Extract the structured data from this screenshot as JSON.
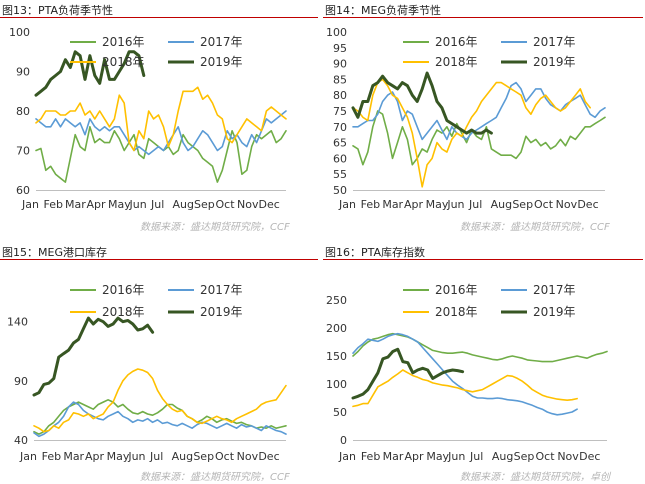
{
  "panels": [
    {
      "title": "图13：PTA负荷季节性",
      "source": "数据来源：盛达期货研究院，CCF"
    },
    {
      "title": "图14：MEG负荷季节性",
      "source": "数据来源：盛达期货研究院，CCF"
    },
    {
      "title": "图15：MEG港口库存",
      "source": "数据来源：盛达期货研究院，CCF"
    },
    {
      "title": "图16：PTA库存指数",
      "source": "数据来源：盛达期货研究院，卓创"
    }
  ],
  "colors": {
    "2016年": "#70ad47",
    "2017年": "#5b9bd5",
    "2018年": "#ffc000",
    "2019年": "#375623"
  },
  "chart_data": [
    {
      "type": "line",
      "ylim": [
        60,
        100
      ],
      "yticks": [
        60,
        70,
        80,
        90,
        100
      ],
      "xticks": [
        "Jan",
        "Feb",
        "Mar",
        "Apr",
        "May",
        "Jun",
        "Jul",
        "Aug",
        "Sep",
        "Oct",
        "Nov",
        "Dec"
      ],
      "legend": "top",
      "n_points": 52,
      "series": [
        {
          "name": "2016年",
          "values": [
            70,
            70.5,
            65,
            66,
            64,
            63,
            62,
            68,
            74,
            71,
            70,
            76,
            72,
            73,
            72,
            72,
            75,
            73,
            70,
            72,
            74,
            69,
            68,
            73,
            72,
            71,
            70,
            71,
            69,
            70,
            74,
            72,
            71,
            70,
            68,
            67,
            66,
            62,
            65,
            70,
            75,
            72,
            64,
            65,
            71,
            74,
            73,
            74,
            75,
            72,
            73,
            75
          ]
        },
        {
          "name": "2017年",
          "values": [
            78,
            77,
            76,
            76,
            78,
            76,
            78,
            77,
            76,
            77,
            74,
            78,
            76,
            75,
            76,
            75,
            76,
            76,
            74,
            72,
            70,
            71,
            70,
            69,
            70,
            71,
            70,
            72,
            74,
            76,
            72,
            70,
            71,
            73,
            75,
            74,
            72,
            70,
            71,
            75,
            73,
            74,
            72,
            71,
            74,
            72,
            75,
            78,
            77,
            78,
            79,
            80
          ]
        },
        {
          "name": "2018年",
          "values": [
            77,
            78,
            80,
            80,
            80,
            79,
            79,
            80,
            80,
            82,
            79,
            80,
            78,
            80,
            78,
            76,
            78,
            84,
            82,
            72,
            70,
            75,
            73,
            80,
            78,
            79,
            76,
            71,
            74,
            80,
            85,
            85,
            85,
            86,
            83,
            84,
            82,
            79,
            78,
            73,
            72,
            74,
            76,
            78,
            77,
            76,
            75,
            80,
            81,
            80,
            79,
            78
          ]
        },
        {
          "name": "2019年",
          "values": [
            84,
            85,
            86,
            88,
            89,
            90,
            93,
            91,
            95,
            94,
            88,
            94,
            89,
            87,
            93,
            88,
            88,
            90,
            92,
            95,
            95,
            94,
            89
          ]
        }
      ]
    },
    {
      "type": "line",
      "ylim": [
        50,
        100
      ],
      "yticks": [
        50,
        55,
        60,
        65,
        70,
        75,
        80,
        85,
        90,
        95,
        100
      ],
      "xticks": [
        "Jan",
        "Feb",
        "Mar",
        "Apr",
        "May",
        "Jun",
        "Jul",
        "Aug",
        "Sep",
        "Oct",
        "Nov",
        "Dec"
      ],
      "legend": "top",
      "n_points": 52,
      "series": [
        {
          "name": "2016年",
          "values": [
            64,
            63,
            58,
            62,
            70,
            75,
            74,
            68,
            60,
            65,
            70,
            66,
            58,
            60,
            63,
            62,
            66,
            69,
            68,
            70,
            67,
            71,
            68,
            65,
            69,
            67,
            66,
            70,
            63,
            62,
            61,
            61,
            61,
            60,
            62,
            67,
            65,
            66,
            64,
            65,
            63,
            64,
            66,
            64,
            67,
            66,
            68,
            70,
            70,
            71,
            72,
            73
          ]
        },
        {
          "name": "2017年",
          "values": [
            70,
            70,
            71,
            72,
            72,
            74,
            78,
            80,
            81,
            78,
            72,
            75,
            74,
            70,
            66,
            68,
            70,
            72,
            69,
            66,
            70,
            68,
            67,
            66,
            68,
            69,
            70,
            71,
            72,
            73,
            76,
            79,
            83,
            84,
            82,
            78,
            80,
            82,
            82,
            79,
            77,
            76,
            75,
            77,
            78,
            79,
            80,
            77,
            74,
            73,
            75,
            76
          ]
        },
        {
          "name": "2018年",
          "values": [
            76,
            75,
            73,
            72,
            80,
            84,
            85,
            83,
            80,
            79,
            76,
            73,
            68,
            60,
            51,
            58,
            60,
            65,
            63,
            62,
            66,
            68,
            67,
            70,
            73,
            75,
            78,
            80,
            82,
            84,
            84,
            83,
            82,
            81,
            80,
            76,
            74,
            77,
            79,
            80,
            78,
            76,
            75,
            76,
            78,
            80,
            82,
            78,
            76
          ]
        },
        {
          "name": "2019年",
          "values": [
            76,
            73,
            78,
            78,
            83,
            84,
            86,
            84,
            83,
            82,
            84,
            83,
            80,
            78,
            82,
            87,
            83,
            78,
            76,
            72,
            71,
            70,
            69,
            68,
            69,
            68,
            68,
            69,
            68
          ]
        }
      ]
    },
    {
      "type": "line",
      "ylim": [
        40,
        160
      ],
      "yticks": [
        40,
        90,
        140
      ],
      "xticks": [
        "Jan",
        "Feb",
        "Mar",
        "Apr",
        "May",
        "Jun",
        "Jul",
        "Aug",
        "Sep",
        "Oct",
        "Nov",
        "Dec"
      ],
      "legend": "top",
      "n_points": 52,
      "series": [
        {
          "name": "2016年",
          "values": [
            47,
            45,
            47,
            52,
            55,
            60,
            65,
            68,
            70,
            72,
            70,
            68,
            66,
            70,
            72,
            74,
            72,
            68,
            70,
            66,
            63,
            62,
            64,
            62,
            61,
            63,
            66,
            70,
            70,
            67,
            65,
            60,
            58,
            55,
            57,
            60,
            58,
            55,
            57,
            58,
            56,
            54,
            55,
            53,
            52,
            50,
            51,
            50,
            52,
            50,
            51,
            52
          ]
        },
        {
          "name": "2017年",
          "values": [
            46,
            43,
            45,
            48,
            52,
            55,
            60,
            68,
            72,
            70,
            65,
            62,
            60,
            58,
            57,
            60,
            62,
            64,
            60,
            58,
            55,
            57,
            56,
            58,
            55,
            57,
            54,
            55,
            53,
            52,
            54,
            52,
            50,
            53,
            55,
            54,
            52,
            50,
            52,
            54,
            52,
            50,
            53,
            51,
            52,
            50,
            48,
            52,
            50,
            48,
            47,
            45
          ]
        },
        {
          "name": "2018年",
          "values": [
            52,
            50,
            47,
            48,
            52,
            50,
            55,
            57,
            63,
            62,
            60,
            62,
            58,
            60,
            62,
            68,
            72,
            82,
            90,
            95,
            98,
            100,
            99,
            97,
            92,
            82,
            75,
            70,
            66,
            64,
            65,
            60,
            58,
            55,
            54,
            56,
            58,
            60,
            58,
            57,
            55,
            58,
            60,
            62,
            64,
            66,
            70,
            72,
            73,
            74,
            80,
            86
          ]
        },
        {
          "name": "2019年",
          "values": [
            78,
            80,
            87,
            88,
            92,
            110,
            113,
            116,
            122,
            125,
            134,
            143,
            138,
            142,
            140,
            136,
            138,
            143,
            140,
            141,
            138,
            133,
            134,
            137,
            131
          ]
        }
      ]
    },
    {
      "type": "line",
      "ylim": [
        0,
        250
      ],
      "yticks": [
        0,
        50,
        100,
        150,
        200,
        250
      ],
      "xticks": [
        "Jan",
        "Feb",
        "Mar",
        "Apr",
        "May",
        "Jun",
        "Jul",
        "Aug",
        "Sep",
        "Oct",
        "Nov",
        "Dec"
      ],
      "legend": "top",
      "n_points": 52,
      "series": [
        {
          "name": "2016年",
          "values": [
            150,
            158,
            168,
            175,
            180,
            182,
            185,
            188,
            190,
            188,
            186,
            184,
            180,
            175,
            170,
            165,
            160,
            158,
            156,
            155,
            155,
            156,
            157,
            155,
            152,
            150,
            148,
            146,
            144,
            143,
            145,
            148,
            150,
            148,
            146,
            143,
            142,
            141,
            140,
            140,
            140,
            142,
            144,
            146,
            148,
            150,
            148,
            146,
            150,
            153,
            155,
            158
          ]
        },
        {
          "name": "2017年",
          "values": [
            155,
            165,
            172,
            180,
            178,
            176,
            180,
            185,
            188,
            190,
            188,
            185,
            180,
            175,
            165,
            155,
            145,
            135,
            125,
            115,
            105,
            98,
            92,
            85,
            78,
            75,
            75,
            74,
            74,
            75,
            74,
            72,
            71,
            70,
            68,
            65,
            62,
            58,
            55,
            50,
            47,
            45,
            46,
            48,
            50,
            55
          ]
        },
        {
          "name": "2018年",
          "values": [
            60,
            62,
            65,
            65,
            80,
            95,
            100,
            105,
            112,
            118,
            125,
            120,
            115,
            112,
            108,
            106,
            102,
            100,
            98,
            97,
            95,
            93,
            90,
            88,
            86,
            88,
            90,
            95,
            100,
            105,
            110,
            115,
            114,
            110,
            105,
            98,
            90,
            85,
            80,
            77,
            75,
            73,
            72,
            71,
            72,
            74
          ]
        },
        {
          "name": "2019年",
          "values": [
            75,
            78,
            82,
            90,
            105,
            120,
            145,
            148,
            158,
            162,
            140,
            138,
            120,
            125,
            128,
            125,
            110,
            115,
            120,
            123,
            125,
            124,
            122
          ]
        }
      ]
    }
  ]
}
